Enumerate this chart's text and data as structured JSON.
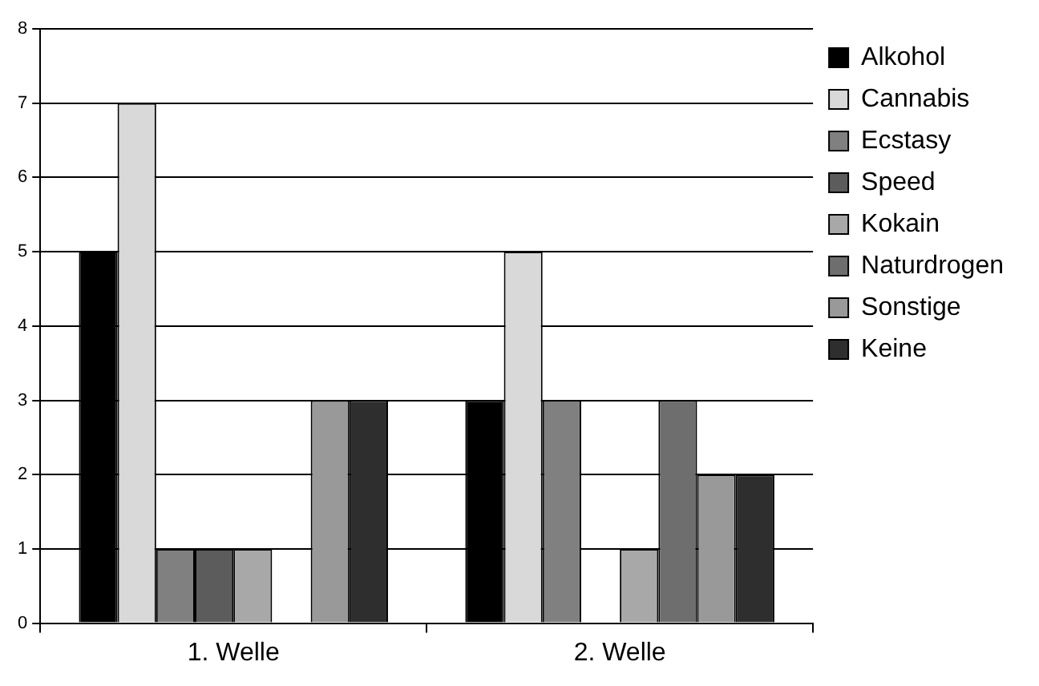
{
  "chart_data": {
    "type": "bar",
    "categories": [
      "1. Welle",
      "2. Welle"
    ],
    "series": [
      {
        "name": "Alkohol",
        "color": "#000000",
        "values": [
          5,
          3
        ]
      },
      {
        "name": "Cannabis",
        "color": "#d9d9d9",
        "values": [
          7,
          5
        ]
      },
      {
        "name": "Ecstasy",
        "color": "#808080",
        "values": [
          1,
          3
        ]
      },
      {
        "name": "Speed",
        "color": "#5c5c5c",
        "values": [
          1,
          0
        ]
      },
      {
        "name": "Kokain",
        "color": "#a8a8a8",
        "values": [
          1,
          1
        ]
      },
      {
        "name": "Naturdrogen",
        "color": "#6e6e6e",
        "values": [
          0,
          3
        ]
      },
      {
        "name": "Sonstige",
        "color": "#999999",
        "values": [
          3,
          2
        ]
      },
      {
        "name": "Keine",
        "color": "#2e2e2e",
        "values": [
          3,
          2
        ]
      }
    ],
    "ylim": [
      0,
      8
    ],
    "yticks": [
      0,
      1,
      2,
      3,
      4,
      5,
      6,
      7,
      8
    ],
    "grid": "y",
    "legend": "right"
  }
}
